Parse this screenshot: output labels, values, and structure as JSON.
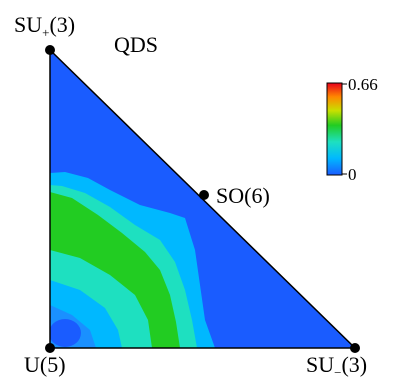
{
  "chart_data": {
    "type": "heatmap",
    "title": "QDS",
    "region": "triangle",
    "vertices": [
      {
        "base": "SU",
        "sub": "+",
        "suffix": "(3)"
      },
      {
        "base": "U",
        "sub": "",
        "suffix": "(5)"
      },
      {
        "base": "SU",
        "sub": "−",
        "suffix": "(3)"
      }
    ],
    "edge_points": [
      {
        "label": "SO(6)"
      }
    ],
    "colorbar": {
      "min": 0,
      "max": 0.66,
      "min_label": "0",
      "max_label": "0.66",
      "stops": [
        "#1a5cff",
        "#00b8ff",
        "#1ee0c0",
        "#22cc22",
        "#c8e000",
        "#ff8800",
        "#e8001c"
      ]
    },
    "contour_levels": [
      0.05,
      0.1,
      0.15,
      0.2,
      0.25,
      0.3
    ],
    "peak_location": "near the U(5) vertex, inner region of the triangle"
  }
}
